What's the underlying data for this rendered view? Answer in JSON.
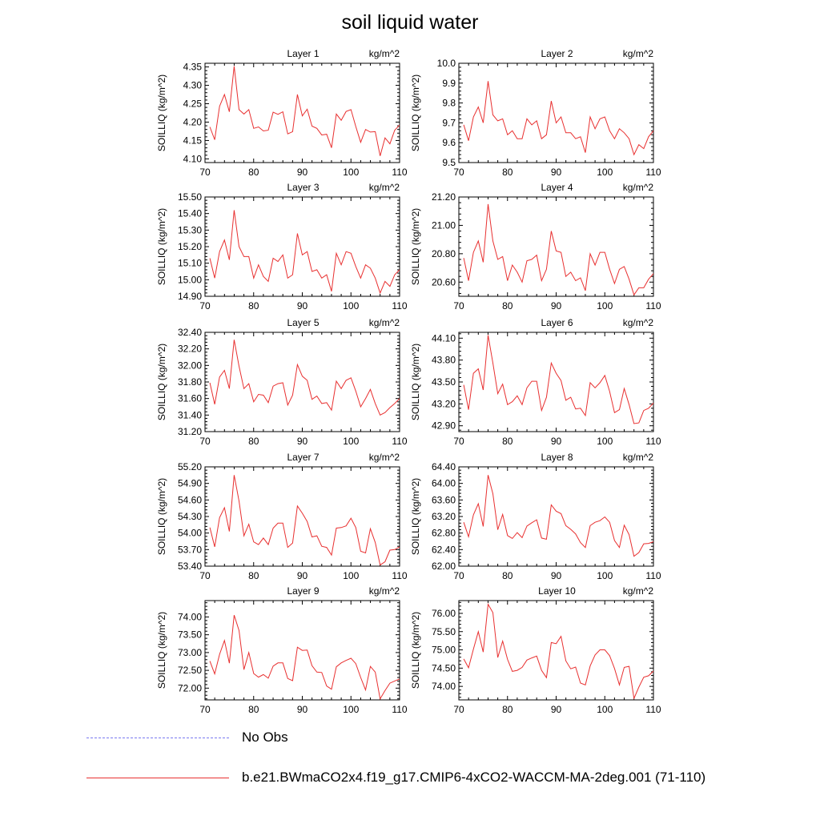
{
  "figure": {
    "title": "soil liquid water"
  },
  "legend": [
    {
      "label": "No Obs",
      "color": "#7a7af0",
      "style": "dashed"
    },
    {
      "label": "b.e21.BWmaCO2x4.f19_g17.CMIP6-4xCO2-WACCM-MA-2deg.001 (71-110)",
      "color": "#e83030",
      "style": "solid"
    }
  ],
  "chart_data": [
    {
      "type": "line",
      "title": "Layer 1",
      "units": "kg/m^2",
      "ylabel": "SOILLIQ  (kg/m^2)",
      "xlim": [
        70,
        110
      ],
      "xticks": [
        "70",
        "80",
        "90",
        "100",
        "110"
      ],
      "ylim": [
        4.09,
        4.36
      ],
      "yticks": [
        "4.10",
        "4.15",
        "4.20",
        "4.25",
        "4.30",
        "4.35"
      ],
      "series": [
        {
          "x_start": 71,
          "values": [
            4.187,
            4.152,
            4.243,
            4.275,
            4.228,
            4.352,
            4.234,
            4.222,
            4.234,
            4.183,
            4.187,
            4.176,
            4.178,
            4.227,
            4.221,
            4.228,
            4.168,
            4.174,
            4.275,
            4.217,
            4.235,
            4.189,
            4.183,
            4.165,
            4.167,
            4.13,
            4.222,
            4.205,
            4.229,
            4.234,
            4.188,
            4.145,
            4.18,
            4.173,
            4.174,
            4.108,
            4.157,
            4.141,
            4.178,
            4.192
          ],
          "color": "#e83030"
        }
      ]
    },
    {
      "type": "line",
      "title": "Layer 2",
      "units": "kg/m^2",
      "ylabel": "SOILLIQ  (kg/m^2)",
      "xlim": [
        70,
        110
      ],
      "xticks": [
        "70",
        "80",
        "90",
        "100",
        "110"
      ],
      "ylim": [
        9.5,
        10.0
      ],
      "yticks": [
        "9.5",
        "9.6",
        "9.7",
        "9.8",
        "9.9",
        "10.0"
      ],
      "series": [
        {
          "x_start": 71,
          "values": [
            9.69,
            9.61,
            9.73,
            9.78,
            9.7,
            9.91,
            9.74,
            9.71,
            9.72,
            9.64,
            9.66,
            9.62,
            9.62,
            9.72,
            9.69,
            9.71,
            9.62,
            9.64,
            9.81,
            9.7,
            9.73,
            9.65,
            9.65,
            9.62,
            9.63,
            9.55,
            9.73,
            9.67,
            9.72,
            9.73,
            9.66,
            9.62,
            9.67,
            9.65,
            9.62,
            9.54,
            9.59,
            9.57,
            9.63,
            9.66
          ],
          "color": "#e83030"
        }
      ]
    },
    {
      "type": "line",
      "title": "Layer 3",
      "units": "kg/m^2",
      "ylabel": "SOILLIQ  (kg/m^2)",
      "xlim": [
        70,
        110
      ],
      "xticks": [
        "70",
        "80",
        "90",
        "100",
        "110"
      ],
      "ylim": [
        14.9,
        15.5
      ],
      "yticks": [
        "14.90",
        "15.00",
        "15.10",
        "15.20",
        "15.30",
        "15.40",
        "15.50"
      ],
      "series": [
        {
          "x_start": 71,
          "values": [
            15.13,
            15.01,
            15.17,
            15.24,
            15.12,
            15.42,
            15.2,
            15.14,
            15.14,
            15.01,
            15.09,
            15.02,
            14.99,
            15.13,
            15.11,
            15.15,
            15.01,
            15.03,
            15.28,
            15.15,
            15.17,
            15.05,
            15.06,
            15.01,
            15.03,
            14.93,
            15.16,
            15.09,
            15.17,
            15.16,
            15.08,
            15.01,
            15.09,
            15.07,
            15.01,
            14.92,
            14.99,
            14.96,
            15.03,
            15.06
          ],
          "color": "#e83030"
        }
      ]
    },
    {
      "type": "line",
      "title": "Layer 4",
      "units": "kg/m^2",
      "ylabel": "SOILLIQ  (kg/m^2)",
      "xlim": [
        70,
        110
      ],
      "xticks": [
        "70",
        "80",
        "90",
        "100",
        "110"
      ],
      "ylim": [
        20.5,
        21.2
      ],
      "yticks": [
        "20.60",
        "20.80",
        "21.00",
        "21.20"
      ],
      "series": [
        {
          "x_start": 71,
          "values": [
            20.77,
            20.61,
            20.81,
            20.89,
            20.74,
            21.15,
            20.89,
            20.76,
            20.78,
            20.61,
            20.72,
            20.67,
            20.6,
            20.75,
            20.76,
            20.79,
            20.61,
            20.69,
            20.96,
            20.82,
            20.81,
            20.64,
            20.67,
            20.61,
            20.63,
            20.54,
            20.8,
            20.72,
            20.81,
            20.81,
            20.69,
            20.59,
            20.69,
            20.71,
            20.62,
            20.51,
            20.56,
            20.56,
            20.62,
            20.66
          ],
          "color": "#e83030"
        }
      ]
    },
    {
      "type": "line",
      "title": "Layer 5",
      "units": "kg/m^2",
      "ylabel": "SOILLIQ  (kg/m^2)",
      "xlim": [
        70,
        110
      ],
      "xticks": [
        "70",
        "80",
        "90",
        "100",
        "110"
      ],
      "ylim": [
        31.2,
        32.4
      ],
      "yticks": [
        "31.20",
        "31.40",
        "31.60",
        "31.80",
        "32.00",
        "32.20",
        "32.40"
      ],
      "series": [
        {
          "x_start": 71,
          "values": [
            31.79,
            31.53,
            31.86,
            31.94,
            31.72,
            32.31,
            31.99,
            31.72,
            31.78,
            31.56,
            31.65,
            31.64,
            31.55,
            31.75,
            31.78,
            31.79,
            31.52,
            31.64,
            32.01,
            31.87,
            31.82,
            31.59,
            31.63,
            31.54,
            31.55,
            31.46,
            31.81,
            31.72,
            31.82,
            31.85,
            31.69,
            31.5,
            31.6,
            31.71,
            31.54,
            31.4,
            31.43,
            31.49,
            31.54,
            31.6
          ],
          "color": "#e83030"
        }
      ]
    },
    {
      "type": "line",
      "title": "Layer 6",
      "units": "kg/m^2",
      "ylabel": "SOILLIQ  (kg/m^2)",
      "xlim": [
        70,
        110
      ],
      "xticks": [
        "70",
        "80",
        "90",
        "100",
        "110"
      ],
      "ylim": [
        42.82,
        44.18
      ],
      "yticks": [
        "42.90",
        "43.20",
        "43.50",
        "43.80",
        "44.10"
      ],
      "series": [
        {
          "x_start": 71,
          "values": [
            43.46,
            43.12,
            43.62,
            43.68,
            43.39,
            44.14,
            43.76,
            43.34,
            43.47,
            43.19,
            43.23,
            43.31,
            43.19,
            43.42,
            43.51,
            43.51,
            43.11,
            43.29,
            43.76,
            43.62,
            43.52,
            43.25,
            43.29,
            43.13,
            43.14,
            43.04,
            43.49,
            43.42,
            43.49,
            43.59,
            43.37,
            43.08,
            43.12,
            43.41,
            43.19,
            42.93,
            42.94,
            43.11,
            43.14,
            43.21
          ],
          "color": "#e83030"
        }
      ]
    },
    {
      "type": "line",
      "title": "Layer 7",
      "units": "kg/m^2",
      "ylabel": "SOILLIQ  (kg/m^2)",
      "xlim": [
        70,
        110
      ],
      "xticks": [
        "70",
        "80",
        "90",
        "100",
        "110"
      ],
      "ylim": [
        53.4,
        55.2
      ],
      "yticks": [
        "53.40",
        "53.70",
        "54.00",
        "54.30",
        "54.60",
        "54.90",
        "55.20"
      ],
      "series": [
        {
          "x_start": 71,
          "values": [
            54.1,
            53.75,
            54.28,
            54.46,
            54.03,
            55.05,
            54.58,
            53.95,
            54.16,
            53.84,
            53.79,
            53.91,
            53.79,
            54.09,
            54.18,
            54.18,
            53.74,
            53.82,
            54.49,
            54.36,
            54.21,
            53.93,
            53.95,
            53.76,
            53.74,
            53.6,
            54.09,
            54.1,
            54.13,
            54.27,
            54.1,
            53.67,
            53.64,
            54.08,
            53.83,
            53.42,
            53.48,
            53.69,
            53.7,
            53.75
          ],
          "color": "#e83030"
        }
      ]
    },
    {
      "type": "line",
      "title": "Layer 8",
      "units": "kg/m^2",
      "ylabel": "SOILLIQ  (kg/m^2)",
      "xlim": [
        70,
        110
      ],
      "xticks": [
        "70",
        "80",
        "90",
        "100",
        "110"
      ],
      "ylim": [
        62.0,
        64.4
      ],
      "yticks": [
        "62.00",
        "62.40",
        "62.80",
        "63.20",
        "63.60",
        "64.00",
        "64.40"
      ],
      "series": [
        {
          "x_start": 71,
          "values": [
            63.06,
            62.71,
            63.24,
            63.51,
            62.96,
            64.2,
            63.75,
            62.88,
            63.25,
            62.74,
            62.67,
            62.81,
            62.69,
            62.97,
            63.05,
            63.12,
            62.68,
            62.65,
            63.48,
            63.33,
            63.27,
            62.98,
            62.89,
            62.78,
            62.57,
            62.45,
            62.98,
            63.06,
            63.1,
            63.19,
            63.06,
            62.62,
            62.45,
            62.99,
            62.76,
            62.24,
            62.33,
            62.54,
            62.55,
            62.59
          ],
          "color": "#e83030"
        }
      ]
    },
    {
      "type": "line",
      "title": "Layer 9",
      "units": "kg/m^2",
      "ylabel": "SOILLIQ  (kg/m^2)",
      "xlim": [
        70,
        110
      ],
      "xticks": [
        "70",
        "80",
        "90",
        "100",
        "110"
      ],
      "ylim": [
        71.67,
        74.46
      ],
      "yticks": [
        "72.00",
        "72.50",
        "73.00",
        "73.50",
        "74.00"
      ],
      "series": [
        {
          "x_start": 71,
          "values": [
            72.76,
            72.4,
            72.95,
            73.34,
            72.7,
            74.05,
            73.62,
            72.52,
            73.0,
            72.41,
            72.31,
            72.38,
            72.28,
            72.62,
            72.71,
            72.71,
            72.27,
            72.21,
            73.15,
            73.06,
            73.07,
            72.63,
            72.45,
            72.44,
            72.06,
            71.97,
            72.6,
            72.71,
            72.78,
            72.84,
            72.69,
            72.3,
            71.95,
            72.61,
            72.45,
            71.7,
            71.93,
            72.14,
            72.2,
            72.26
          ],
          "color": "#e83030"
        }
      ]
    },
    {
      "type": "line",
      "title": "Layer 10",
      "units": "kg/m^2",
      "ylabel": "SOILLIQ  (kg/m^2)",
      "xlim": [
        70,
        110
      ],
      "xticks": [
        "70",
        "80",
        "90",
        "100",
        "110"
      ],
      "ylim": [
        73.63,
        76.35
      ],
      "yticks": [
        "74.00",
        "74.50",
        "75.00",
        "75.50",
        "76.00"
      ],
      "series": [
        {
          "x_start": 71,
          "values": [
            74.75,
            74.51,
            75.02,
            75.5,
            74.94,
            76.25,
            76.02,
            74.79,
            75.24,
            74.74,
            74.41,
            74.44,
            74.52,
            74.72,
            74.78,
            74.83,
            74.44,
            74.24,
            75.2,
            75.17,
            75.37,
            74.7,
            74.48,
            74.53,
            74.09,
            74.04,
            74.56,
            74.86,
            75.0,
            75.0,
            74.84,
            74.49,
            74.04,
            74.52,
            74.55,
            73.67,
            73.98,
            74.25,
            74.29,
            74.42
          ],
          "color": "#e83030"
        }
      ]
    }
  ]
}
